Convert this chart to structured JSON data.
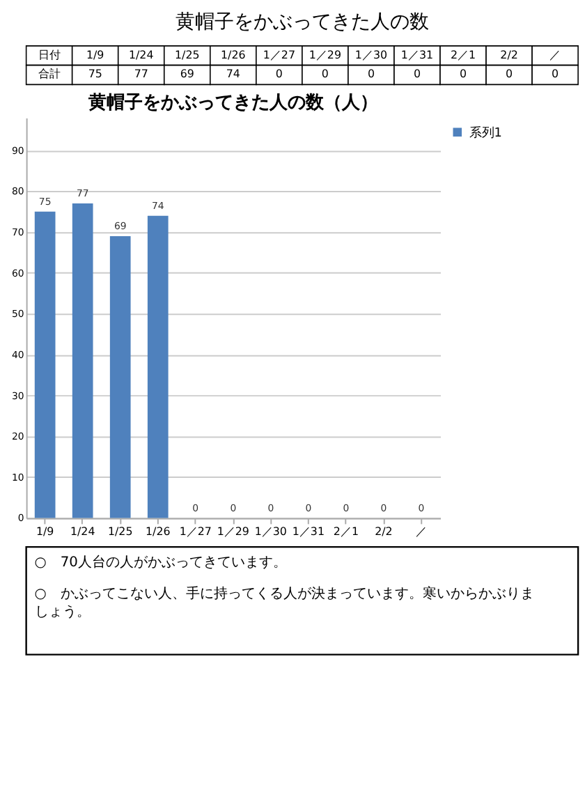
{
  "chart_data": {
    "type": "bar",
    "title": "黄帽子をかぶってきた人の数（人）",
    "categories": [
      "1/9",
      "1/24",
      "1/25",
      "1/26",
      "1／27",
      "1／29",
      "1／30",
      "1／31",
      "2／1",
      "2/2",
      "／"
    ],
    "series": [
      {
        "name": "系列1",
        "color": "#4f81bd",
        "values": [
          75,
          77,
          69,
          74,
          0,
          0,
          0,
          0,
          0,
          0,
          0
        ],
        "value_labels": [
          "75",
          "77",
          "69",
          "74",
          "0",
          "0",
          "0",
          "0",
          "0",
          "0",
          "0"
        ]
      }
    ],
    "ylim": [
      0,
      98
    ],
    "yticks": [
      0,
      10,
      20,
      30,
      40,
      50,
      60,
      70,
      80,
      90
    ],
    "grid": "y",
    "legend": "right",
    "data_labels": true,
    "annotations": [
      "黄帽子をかぶってきた人の数",
      "日付",
      "合計",
      "○　70人台の人がかぶってきています。",
      "○　かぶってこない人、手に持ってくる人が決まっています。寒いからかぶりましょう。"
    ]
  }
}
